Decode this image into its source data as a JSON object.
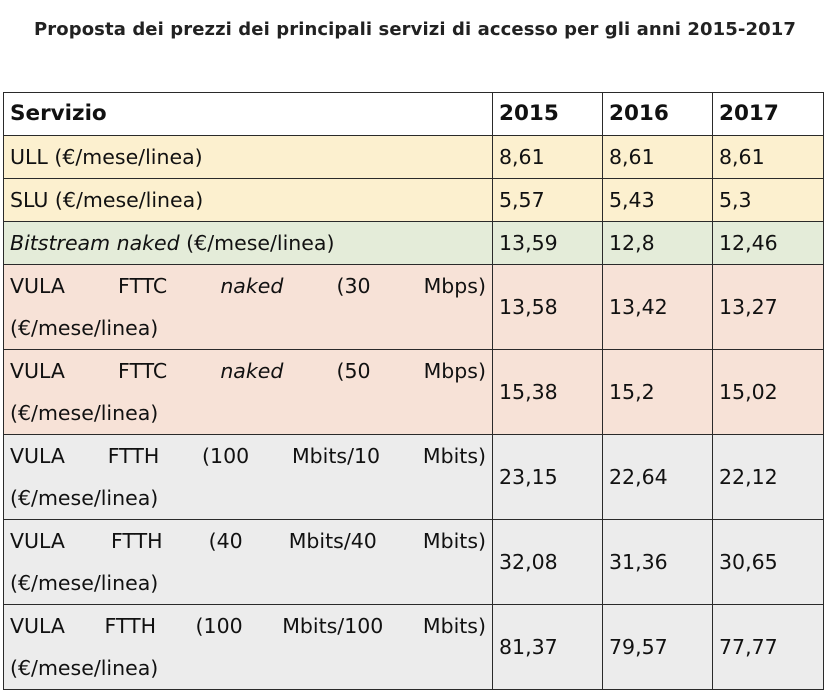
{
  "caption": "Proposta dei prezzi dei principali servizi di accesso per gli anni 2015-2017",
  "table": {
    "headers": [
      "Servizio",
      "2015",
      "2016",
      "2017"
    ],
    "rows": [
      {
        "label": "ULL (€/mese/linea)",
        "values": [
          "8,61",
          "8,61",
          "8,61"
        ]
      },
      {
        "label": "SLU (€/mese/linea)",
        "values": [
          "5,57",
          "5,43",
          "5,3"
        ]
      },
      {
        "label_italic": "Bitstream naked",
        "label_rest": " (€/mese/linea)",
        "values": [
          "13,59",
          "12,8",
          "12,46"
        ]
      },
      {
        "label_part1": "VULA FTTC ",
        "label_italic": "naked",
        "label_part2": " (30 Mbps)",
        "label_line2": "(€/mese/linea)",
        "values": [
          "13,58",
          "13,42",
          "13,27"
        ]
      },
      {
        "label_part1": "VULA FTTC ",
        "label_italic": "naked",
        "label_part2": " (50 Mbps)",
        "label_line2": "(€/mese/linea)",
        "values": [
          "15,38",
          "15,2",
          "15,02"
        ]
      },
      {
        "label_line1": "VULA FTTH (100 Mbits/10 Mbits)",
        "label_line2": "(€/mese/linea)",
        "values": [
          "23,15",
          "22,64",
          "22,12"
        ]
      },
      {
        "label_line1": "VULA FTTH (40 Mbits/40 Mbits)",
        "label_line2": "(€/mese/linea)",
        "values": [
          "32,08",
          "31,36",
          "30,65"
        ]
      },
      {
        "label_line1": "VULA FTTH (100 Mbits/100 Mbits)",
        "label_line2": "(€/mese/linea)",
        "values": [
          "81,37",
          "79,57",
          "77,77"
        ]
      }
    ]
  }
}
